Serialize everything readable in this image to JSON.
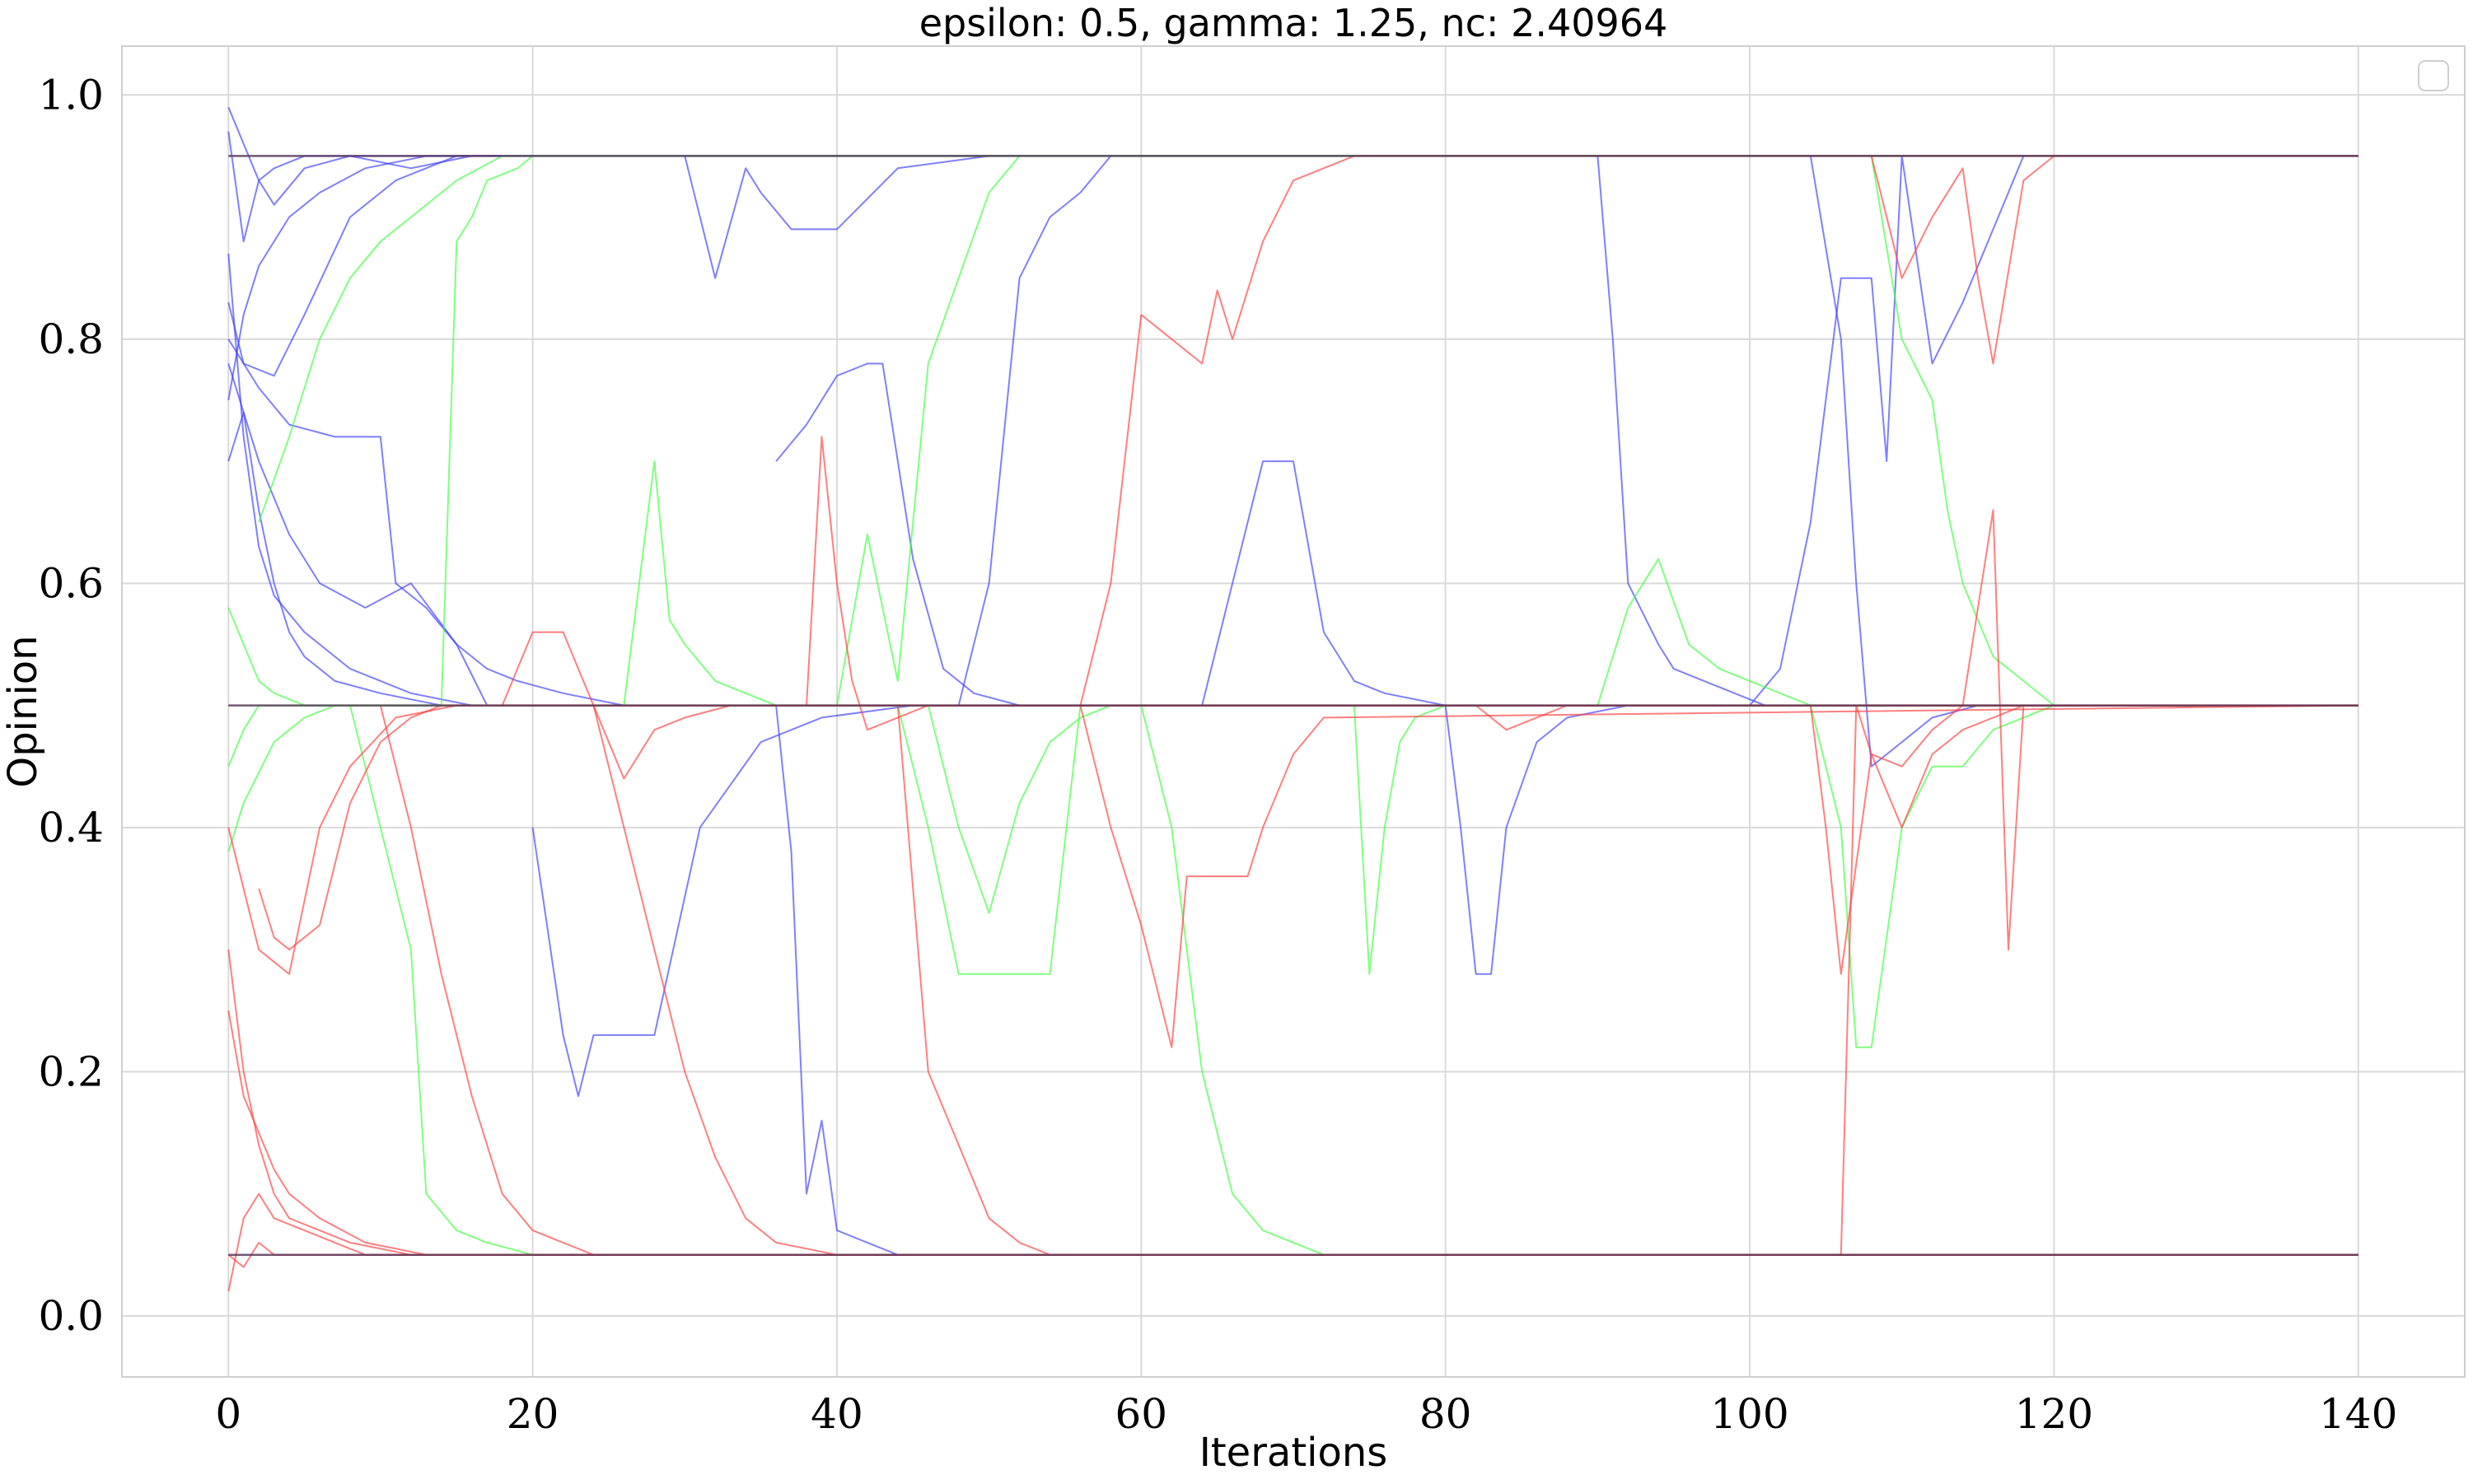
{
  "chart_data": {
    "type": "line",
    "title": "epsilon: 0.5, gamma: 1.25, nc: 2.40964",
    "xlabel": "Iterations",
    "ylabel": "Opinion",
    "xlim": [
      -7,
      147
    ],
    "ylim": [
      -0.05,
      1.04
    ],
    "xticks": [
      0,
      20,
      40,
      60,
      80,
      100,
      120,
      140
    ],
    "yticks": [
      0.0,
      0.2,
      0.4,
      0.6,
      0.8,
      1.0
    ],
    "xtick_labels": [
      "0",
      "20",
      "40",
      "60",
      "80",
      "100",
      "120",
      "140"
    ],
    "ytick_labels": [
      "0.0",
      "0.2",
      "0.4",
      "0.6",
      "0.8",
      "1.0"
    ],
    "grid": true,
    "legend": "top-right, empty",
    "colors": {
      "blue": "#3b3bff",
      "green": "#3cff3c",
      "red": "#ff3b3b"
    },
    "steady_states": [
      0.95,
      0.5,
      0.05
    ],
    "series": [
      {
        "color": "blue",
        "x": [
          0,
          1,
          2,
          3,
          5,
          8,
          12,
          16,
          20,
          25,
          30,
          140
        ],
        "y": [
          0.97,
          0.88,
          0.93,
          0.91,
          0.94,
          0.95,
          0.94,
          0.95,
          0.95,
          0.95,
          0.95,
          0.95
        ]
      },
      {
        "color": "blue",
        "x": [
          0,
          1,
          2,
          4,
          6,
          9,
          13,
          18,
          24,
          140
        ],
        "y": [
          0.75,
          0.82,
          0.86,
          0.9,
          0.92,
          0.94,
          0.95,
          0.95,
          0.95,
          0.95
        ]
      },
      {
        "color": "blue",
        "x": [
          0,
          1,
          2,
          3,
          5,
          7,
          10,
          14,
          19,
          140
        ],
        "y": [
          0.99,
          0.96,
          0.93,
          0.94,
          0.95,
          0.95,
          0.95,
          0.95,
          0.95,
          0.95
        ]
      },
      {
        "color": "blue",
        "x": [
          0,
          1,
          3,
          5,
          8,
          11,
          15,
          20,
          140
        ],
        "y": [
          0.83,
          0.78,
          0.77,
          0.82,
          0.9,
          0.93,
          0.95,
          0.95,
          0.95
        ]
      },
      {
        "color": "blue",
        "x": [
          0,
          1,
          2,
          3,
          4,
          5,
          7,
          10,
          14,
          18,
          140
        ],
        "y": [
          0.7,
          0.74,
          0.66,
          0.6,
          0.56,
          0.54,
          0.52,
          0.51,
          0.5,
          0.5,
          0.5
        ]
      },
      {
        "color": "blue",
        "x": [
          0,
          1,
          2,
          3,
          5,
          8,
          12,
          16,
          22,
          140
        ],
        "y": [
          0.87,
          0.72,
          0.63,
          0.59,
          0.56,
          0.53,
          0.51,
          0.5,
          0.5,
          0.5
        ]
      },
      {
        "color": "blue",
        "x": [
          0,
          2,
          4,
          6,
          9,
          12,
          15,
          17,
          19,
          24,
          140
        ],
        "y": [
          0.78,
          0.7,
          0.64,
          0.6,
          0.58,
          0.6,
          0.55,
          0.5,
          0.5,
          0.5,
          0.5
        ]
      },
      {
        "color": "blue",
        "x": [
          0,
          2,
          4,
          7,
          10,
          11,
          13,
          15,
          17,
          19,
          22,
          26,
          30,
          140
        ],
        "y": [
          0.8,
          0.76,
          0.73,
          0.72,
          0.72,
          0.6,
          0.58,
          0.55,
          0.53,
          0.52,
          0.51,
          0.5,
          0.5,
          0.5
        ]
      },
      {
        "color": "blue",
        "x": [
          20,
          22,
          23,
          24,
          26,
          28,
          31,
          35,
          39,
          45,
          140
        ],
        "y": [
          0.4,
          0.23,
          0.18,
          0.23,
          0.23,
          0.23,
          0.4,
          0.47,
          0.49,
          0.5,
          0.5
        ]
      },
      {
        "color": "blue",
        "x": [
          30,
          32,
          34,
          35,
          37,
          40,
          44,
          50,
          140
        ],
        "y": [
          0.95,
          0.85,
          0.94,
          0.92,
          0.89,
          0.89,
          0.94,
          0.95,
          0.95
        ]
      },
      {
        "color": "blue",
        "x": [
          36,
          37,
          38,
          39,
          40,
          42,
          44,
          46,
          50,
          55,
          140
        ],
        "y": [
          0.5,
          0.38,
          0.1,
          0.16,
          0.07,
          0.06,
          0.05,
          0.05,
          0.05,
          0.05,
          0.05
        ]
      },
      {
        "color": "blue",
        "x": [
          36,
          38,
          40,
          42,
          43,
          45,
          47,
          49,
          52,
          140
        ],
        "y": [
          0.7,
          0.73,
          0.77,
          0.78,
          0.78,
          0.62,
          0.53,
          0.51,
          0.5,
          0.5
        ]
      },
      {
        "color": "blue",
        "x": [
          48,
          50,
          52,
          54,
          56,
          58,
          60,
          140
        ],
        "y": [
          0.5,
          0.6,
          0.85,
          0.9,
          0.92,
          0.95,
          0.95,
          0.95
        ]
      },
      {
        "color": "blue",
        "x": [
          64,
          66,
          68,
          70,
          72,
          74,
          76,
          80,
          140
        ],
        "y": [
          0.5,
          0.6,
          0.7,
          0.7,
          0.56,
          0.52,
          0.51,
          0.5,
          0.5
        ]
      },
      {
        "color": "blue",
        "x": [
          80,
          81,
          82,
          83,
          84,
          86,
          88,
          92,
          140
        ],
        "y": [
          0.5,
          0.4,
          0.28,
          0.28,
          0.4,
          0.47,
          0.49,
          0.5,
          0.5
        ]
      },
      {
        "color": "blue",
        "x": [
          90,
          91,
          92,
          94,
          95,
          97,
          99,
          101,
          140
        ],
        "y": [
          0.95,
          0.8,
          0.6,
          0.55,
          0.53,
          0.52,
          0.51,
          0.5,
          0.5
        ]
      },
      {
        "color": "blue",
        "x": [
          100,
          102,
          104,
          106,
          108,
          109,
          110,
          112,
          114,
          118,
          122,
          140
        ],
        "y": [
          0.5,
          0.53,
          0.65,
          0.85,
          0.85,
          0.7,
          0.95,
          0.78,
          0.83,
          0.95,
          0.95,
          0.95
        ]
      },
      {
        "color": "blue",
        "x": [
          104,
          106,
          107,
          108,
          110,
          112,
          115,
          118,
          121,
          140
        ],
        "y": [
          0.95,
          0.8,
          0.6,
          0.45,
          0.47,
          0.49,
          0.5,
          0.5,
          0.5,
          0.5
        ]
      },
      {
        "color": "green",
        "x": [
          0,
          1,
          2,
          4,
          6,
          8,
          10,
          140
        ],
        "y": [
          0.45,
          0.48,
          0.5,
          0.5,
          0.5,
          0.5,
          0.5,
          0.5
        ]
      },
      {
        "color": "green",
        "x": [
          0,
          1,
          2,
          3,
          5,
          7,
          9,
          12,
          140
        ],
        "y": [
          0.58,
          0.55,
          0.52,
          0.51,
          0.5,
          0.5,
          0.5,
          0.5,
          0.5
        ]
      },
      {
        "color": "green",
        "x": [
          0,
          1,
          3,
          5,
          7,
          10,
          13,
          140
        ],
        "y": [
          0.38,
          0.42,
          0.47,
          0.49,
          0.5,
          0.5,
          0.5,
          0.5
        ]
      },
      {
        "color": "green",
        "x": [
          2,
          4,
          6,
          8,
          10,
          12,
          15,
          18,
          25,
          140
        ],
        "y": [
          0.65,
          0.72,
          0.8,
          0.85,
          0.88,
          0.9,
          0.93,
          0.95,
          0.95,
          0.95
        ]
      },
      {
        "color": "green",
        "x": [
          8,
          10,
          12,
          13,
          15,
          17,
          20,
          24,
          30,
          140
        ],
        "y": [
          0.5,
          0.4,
          0.3,
          0.1,
          0.07,
          0.06,
          0.05,
          0.05,
          0.05,
          0.05
        ]
      },
      {
        "color": "green",
        "x": [
          14,
          15,
          16,
          17,
          19,
          20,
          22,
          24,
          140
        ],
        "y": [
          0.5,
          0.88,
          0.9,
          0.93,
          0.94,
          0.95,
          0.95,
          0.95,
          0.95
        ]
      },
      {
        "color": "green",
        "x": [
          26,
          28,
          29,
          30,
          32,
          34,
          36,
          38,
          140
        ],
        "y": [
          0.5,
          0.7,
          0.57,
          0.55,
          0.52,
          0.51,
          0.5,
          0.5,
          0.5
        ]
      },
      {
        "color": "green",
        "x": [
          40,
          42,
          44,
          46,
          48,
          50,
          52,
          140
        ],
        "y": [
          0.5,
          0.64,
          0.52,
          0.78,
          0.85,
          0.92,
          0.95,
          0.95
        ]
      },
      {
        "color": "green",
        "x": [
          46,
          48,
          50,
          52,
          54,
          56,
          58,
          140
        ],
        "y": [
          0.5,
          0.4,
          0.33,
          0.42,
          0.47,
          0.49,
          0.5,
          0.5
        ]
      },
      {
        "color": "green",
        "x": [
          44,
          46,
          48,
          50,
          52,
          54,
          56,
          140
        ],
        "y": [
          0.5,
          0.4,
          0.28,
          0.28,
          0.28,
          0.28,
          0.5,
          0.5
        ]
      },
      {
        "color": "green",
        "x": [
          60,
          62,
          64,
          66,
          68,
          70,
          72,
          140
        ],
        "y": [
          0.5,
          0.4,
          0.2,
          0.1,
          0.07,
          0.06,
          0.05,
          0.05
        ]
      },
      {
        "color": "green",
        "x": [
          74,
          75,
          76,
          77,
          78,
          80,
          82,
          140
        ],
        "y": [
          0.5,
          0.28,
          0.4,
          0.47,
          0.49,
          0.5,
          0.5,
          0.5
        ]
      },
      {
        "color": "green",
        "x": [
          90,
          92,
          94,
          96,
          98,
          100,
          102,
          104,
          140
        ],
        "y": [
          0.5,
          0.58,
          0.62,
          0.55,
          0.53,
          0.52,
          0.51,
          0.5,
          0.5
        ]
      },
      {
        "color": "green",
        "x": [
          104,
          106,
          107,
          108,
          110,
          112,
          114,
          116,
          120,
          140
        ],
        "y": [
          0.5,
          0.4,
          0.22,
          0.22,
          0.4,
          0.45,
          0.45,
          0.48,
          0.5,
          0.5
        ]
      },
      {
        "color": "green",
        "x": [
          108,
          110,
          112,
          113,
          114,
          116,
          118,
          120,
          140
        ],
        "y": [
          0.95,
          0.8,
          0.75,
          0.66,
          0.6,
          0.54,
          0.52,
          0.5,
          0.5
        ]
      },
      {
        "color": "red",
        "x": [
          0,
          1,
          2,
          3,
          5,
          7,
          10,
          14,
          20,
          140
        ],
        "y": [
          0.05,
          0.04,
          0.06,
          0.05,
          0.05,
          0.05,
          0.05,
          0.05,
          0.05,
          0.05
        ]
      },
      {
        "color": "red",
        "x": [
          0,
          1,
          2,
          3,
          4,
          6,
          8,
          12,
          18,
          140
        ],
        "y": [
          0.3,
          0.2,
          0.14,
          0.1,
          0.08,
          0.07,
          0.06,
          0.05,
          0.05,
          0.05
        ]
      },
      {
        "color": "red",
        "x": [
          0,
          1,
          2,
          3,
          5,
          7,
          9,
          12,
          16,
          140
        ],
        "y": [
          0.02,
          0.08,
          0.1,
          0.08,
          0.07,
          0.06,
          0.05,
          0.05,
          0.05,
          0.05
        ]
      },
      {
        "color": "red",
        "x": [
          0,
          1,
          2,
          4,
          6,
          8,
          11,
          15,
          140
        ],
        "y": [
          0.4,
          0.35,
          0.3,
          0.28,
          0.4,
          0.45,
          0.49,
          0.5,
          0.5
        ]
      },
      {
        "color": "red",
        "x": [
          0,
          1,
          2,
          3,
          4,
          6,
          9,
          13,
          140
        ],
        "y": [
          0.25,
          0.18,
          0.15,
          0.12,
          0.1,
          0.08,
          0.06,
          0.05,
          0.05
        ]
      },
      {
        "color": "red",
        "x": [
          2,
          3,
          4,
          6,
          8,
          10,
          12,
          14,
          18,
          140
        ],
        "y": [
          0.35,
          0.31,
          0.3,
          0.32,
          0.42,
          0.47,
          0.49,
          0.5,
          0.5,
          0.5
        ]
      },
      {
        "color": "red",
        "x": [
          10,
          12,
          14,
          16,
          18,
          20,
          22,
          24,
          140
        ],
        "y": [
          0.5,
          0.4,
          0.28,
          0.18,
          0.1,
          0.07,
          0.06,
          0.05,
          0.05
        ]
      },
      {
        "color": "red",
        "x": [
          18,
          20,
          22,
          24,
          26,
          28,
          30,
          33,
          140
        ],
        "y": [
          0.5,
          0.56,
          0.56,
          0.5,
          0.44,
          0.48,
          0.49,
          0.5,
          0.5
        ]
      },
      {
        "color": "red",
        "x": [
          24,
          26,
          28,
          30,
          32,
          34,
          36,
          40,
          140
        ],
        "y": [
          0.5,
          0.4,
          0.3,
          0.2,
          0.13,
          0.08,
          0.06,
          0.05,
          0.05
        ]
      },
      {
        "color": "red",
        "x": [
          38,
          39,
          40,
          41,
          42,
          44,
          46,
          50,
          140
        ],
        "y": [
          0.5,
          0.72,
          0.6,
          0.52,
          0.48,
          0.49,
          0.5,
          0.5,
          0.5
        ]
      },
      {
        "color": "red",
        "x": [
          44,
          46,
          48,
          50,
          52,
          54,
          56,
          58,
          62,
          140
        ],
        "y": [
          0.5,
          0.2,
          0.14,
          0.08,
          0.06,
          0.05,
          0.05,
          0.05,
          0.05,
          0.05
        ]
      },
      {
        "color": "red",
        "x": [
          56,
          58,
          60,
          62,
          64,
          65,
          66,
          68,
          70,
          74,
          140
        ],
        "y": [
          0.5,
          0.6,
          0.82,
          0.8,
          0.78,
          0.84,
          0.8,
          0.88,
          0.93,
          0.95,
          0.95
        ]
      },
      {
        "color": "red",
        "x": [
          56,
          58,
          60,
          62,
          63,
          64,
          66,
          67,
          68,
          70,
          72,
          140
        ],
        "y": [
          0.5,
          0.4,
          0.32,
          0.22,
          0.36,
          0.36,
          0.36,
          0.36,
          0.4,
          0.46,
          0.49,
          0.5
        ]
      },
      {
        "color": "red",
        "x": [
          82,
          84,
          86,
          88,
          90,
          94,
          140
        ],
        "y": [
          0.5,
          0.48,
          0.49,
          0.5,
          0.5,
          0.5,
          0.5
        ]
      },
      {
        "color": "red",
        "x": [
          106,
          107,
          108,
          110,
          112,
          114,
          116,
          117,
          118,
          120,
          140
        ],
        "y": [
          0.05,
          0.5,
          0.46,
          0.45,
          0.48,
          0.5,
          0.66,
          0.3,
          0.5,
          0.5,
          0.5
        ]
      },
      {
        "color": "red",
        "x": [
          104,
          105,
          106,
          108,
          110,
          112,
          114,
          116,
          118,
          140
        ],
        "y": [
          0.5,
          0.4,
          0.28,
          0.46,
          0.4,
          0.46,
          0.48,
          0.49,
          0.5,
          0.5
        ]
      },
      {
        "color": "red",
        "x": [
          108,
          110,
          112,
          114,
          115,
          116,
          118,
          120,
          122,
          140
        ],
        "y": [
          0.95,
          0.85,
          0.9,
          0.94,
          0.85,
          0.78,
          0.93,
          0.95,
          0.95,
          0.95
        ]
      }
    ]
  }
}
